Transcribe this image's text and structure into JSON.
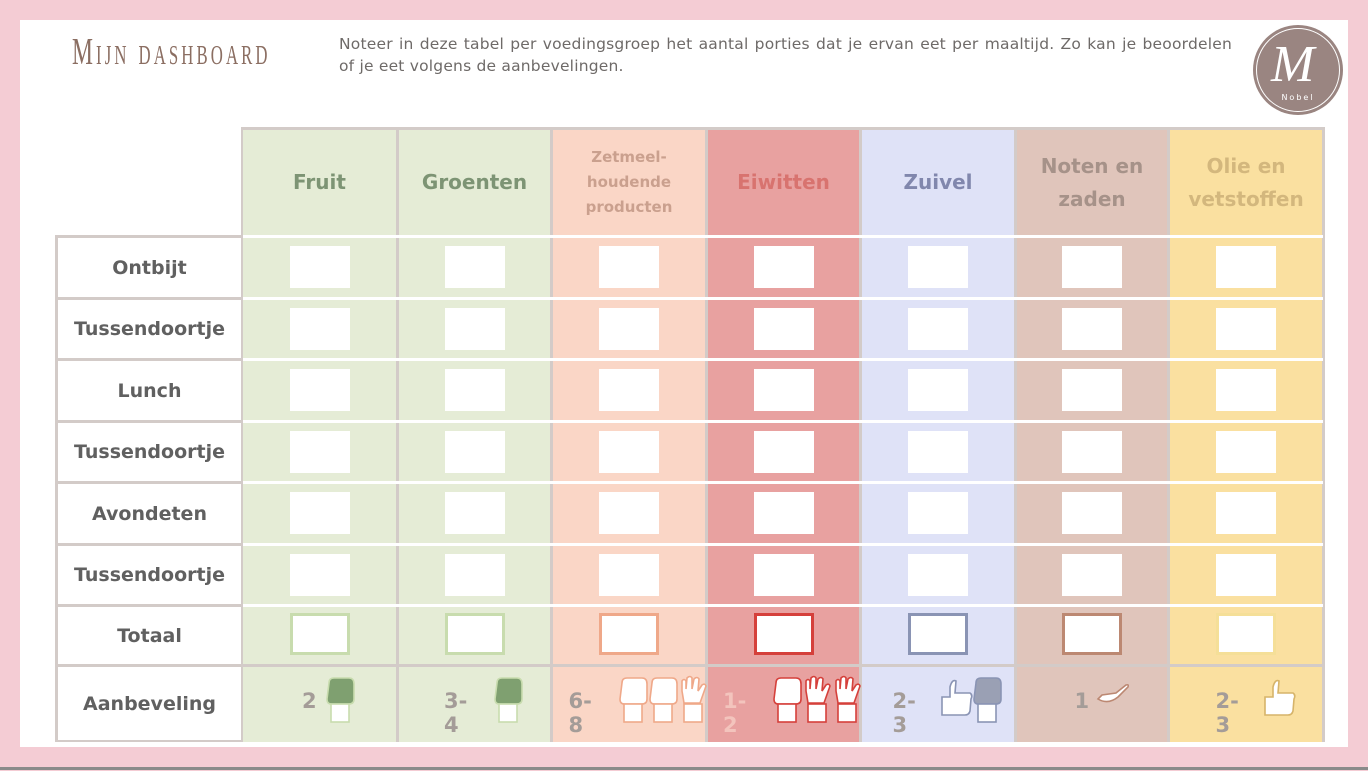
{
  "header": {
    "title": "Mijn dashboard",
    "intro": "Noteer in deze tabel per voedingsgroep het aantal porties dat je ervan eet per maaltijd. Zo kan je beoordelen of je eet volgens de aanbevelingen.",
    "logo_letter": "M",
    "logo_sub": "Nobel"
  },
  "rows": [
    "Ontbijt",
    "Tussendoortje",
    "Lunch",
    "Tussendoortje",
    "Avondeten",
    "Tussendoortje"
  ],
  "total_label": "Totaal",
  "recommendation_label": "Aanbeveling",
  "columns": [
    {
      "name": "Fruit",
      "recommendation": "2",
      "bg": "#e5ecd6",
      "text": "#7d9474",
      "border": "#c8dcae",
      "hands": [
        "fist-green"
      ]
    },
    {
      "name": "Groenten",
      "recommendation": "3-4",
      "bg": "#e5ecd6",
      "text": "#7d9474",
      "border": "#c8dcae",
      "hands": [
        "fist-green"
      ]
    },
    {
      "name": "Zetmeel-\nhoudende\nproducten",
      "recommendation": "6-8",
      "bg": "#fad6c6",
      "text": "#caa08e",
      "border": "#efa889",
      "hands": [
        "fist",
        "fist",
        "open"
      ]
    },
    {
      "name": "Eiwitten",
      "recommendation": "1-2",
      "bg": "#e8a1a0",
      "text": "#d8736f",
      "border": "#d5403b",
      "hands": [
        "fist",
        "open",
        "open"
      ]
    },
    {
      "name": "Zuivel",
      "recommendation": "2-3",
      "bg": "#dfe2f7",
      "text": "#8187ad",
      "border": "#8a94b4",
      "hands": [
        "thumb",
        "fist-grey"
      ]
    },
    {
      "name": "Noten en\nzaden",
      "recommendation": "1",
      "bg": "#e0c5bb",
      "text": "#a69289",
      "border": "#bc8872",
      "hands": [
        "cup"
      ]
    },
    {
      "name": "Olie en\nvetstoffen",
      "recommendation": "2-3",
      "bg": "#fae0a0",
      "text": "#d3b77d",
      "border": "#f5df98",
      "hands": [
        "thumb"
      ]
    }
  ]
}
